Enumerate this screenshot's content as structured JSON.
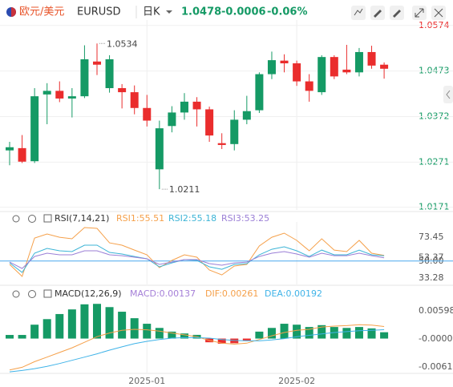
{
  "header": {
    "pair": "欧元/美元",
    "symbol": "EURUSD",
    "period": "日K",
    "price": "1.0478",
    "change": "-0.0006",
    "change_pct": "-0.06%"
  },
  "chart_data": [
    {
      "type": "candlestick",
      "categories": [
        null,
        null,
        null,
        null,
        null,
        null,
        null,
        null,
        null,
        null,
        null,
        "2025-01",
        null,
        null,
        null,
        null,
        null,
        null,
        null,
        null,
        null,
        null,
        null,
        "2025-02",
        null,
        null,
        null,
        null,
        null,
        null,
        null
      ],
      "open": [
        1.0297,
        1.0302,
        1.0273,
        1.0421,
        1.0429,
        1.0412,
        1.0417,
        1.0494,
        1.0435,
        1.0435,
        1.0426,
        1.0391,
        1.0255,
        1.0351,
        1.0381,
        1.0405,
        1.0388,
        1.0313,
        1.0311,
        1.0365,
        1.0386,
        1.0466,
        1.0496,
        1.049,
        1.045,
        1.0426,
        1.0504,
        1.0476,
        1.047,
        1.0515,
        1.0487
      ],
      "high": [
        1.0316,
        1.0331,
        1.0435,
        1.0446,
        1.045,
        1.0435,
        1.053,
        1.0534,
        1.0508,
        1.0444,
        1.0441,
        1.042,
        1.0363,
        1.0395,
        1.0424,
        1.0415,
        1.0394,
        1.0335,
        1.0386,
        1.0418,
        1.047,
        1.0516,
        1.051,
        1.0496,
        1.0466,
        1.0508,
        1.0508,
        1.0531,
        1.0524,
        1.0529,
        1.0492
      ],
      "low": [
        1.0264,
        1.0269,
        1.0269,
        1.0355,
        1.0404,
        1.037,
        1.0413,
        1.0464,
        1.0425,
        1.039,
        1.0377,
        1.035,
        1.0211,
        1.0337,
        1.0365,
        1.035,
        1.0316,
        1.03,
        1.0297,
        1.0355,
        1.038,
        1.0455,
        1.047,
        1.044,
        1.0405,
        1.042,
        1.0455,
        1.0466,
        1.0461,
        1.0478,
        1.0456
      ],
      "close": [
        1.0304,
        1.0272,
        1.0417,
        1.0429,
        1.0412,
        1.0417,
        1.0499,
        1.0487,
        1.0499,
        1.0426,
        1.0391,
        1.0363,
        1.0346,
        1.0381,
        1.0405,
        1.0388,
        1.033,
        1.0309,
        1.0365,
        1.0384,
        1.0466,
        1.0497,
        1.049,
        1.045,
        1.0429,
        1.0504,
        1.0461,
        1.047,
        1.0515,
        1.0485,
        1.0478
      ],
      "up_color": "#159a65",
      "down_color": "#ea2d2d",
      "annotations": [
        {
          "label": "1.0534",
          "value": 1.0534
        },
        {
          "label": "1.0211",
          "value": 1.0211
        }
      ],
      "ylim": [
        1.0165,
        1.0586
      ],
      "yticks": [
        1.0574,
        1.0473,
        1.0372,
        1.0271,
        1.0171
      ],
      "ytick_colors": [
        "#ea2d2d",
        "#159a65",
        "#159a65",
        "#159a65",
        "#159a65"
      ],
      "grid": true
    },
    {
      "type": "line",
      "title": "RSI(7,14,21)",
      "series": [
        {
          "name": "RSI1:55.51",
          "color": "#f5a04a",
          "values": [
            46.7,
            34.9,
            72.6,
            76.6,
            73.4,
            71.9,
            82.9,
            82.1,
            67.9,
            65.6,
            60.8,
            56.1,
            43.5,
            50.6,
            56.1,
            53.8,
            41.2,
            36.4,
            45.1,
            46.7,
            64.8,
            73.4,
            77.4,
            70.3,
            60.1,
            71.9,
            60.8,
            59.3,
            70.3,
            57.7,
            55.51
          ]
        },
        {
          "name": "RSI2:55.18",
          "color": "#3cb4d6",
          "values": [
            48.2,
            38.8,
            57.7,
            62.4,
            60.1,
            59.3,
            65.6,
            65.6,
            58.5,
            56.9,
            54.5,
            52.2,
            44.3,
            48.2,
            51.4,
            50.6,
            44.3,
            41.9,
            46.7,
            47.5,
            56.1,
            61.6,
            64.0,
            60.1,
            54.5,
            60.8,
            56.1,
            56.1,
            60.8,
            56.1,
            55.18
          ]
        },
        {
          "name": "RSI3:53.25",
          "color": "#9b7fd6",
          "values": [
            49.0,
            42.7,
            54.5,
            57.7,
            56.1,
            56.1,
            60.1,
            60.1,
            56.1,
            55.3,
            53.8,
            52.2,
            46.7,
            49.0,
            51.4,
            51.4,
            47.5,
            45.9,
            48.2,
            49.0,
            54.5,
            57.7,
            59.3,
            56.9,
            53.8,
            57.7,
            55.3,
            55.3,
            57.7,
            55.3,
            53.25
          ]
        }
      ],
      "ylim": [
        27,
        96.3
      ],
      "yticks": [
        73.45,
        53.37,
        {
          "value": 50,
          "label": "50.00"
        },
        33.28
      ],
      "grid_colors": [
        null,
        null,
        "#4aa8ee",
        null
      ]
    },
    {
      "type": "macd",
      "title": "MACD(12,26,9)",
      "series": [
        {
          "name": "MACD:0.00137",
          "color": "#a57fd8",
          "kind": "bar",
          "values": [
            0.00078,
            0.00078,
            0.003,
            0.0042,
            0.0053,
            0.0063,
            0.0074,
            0.0075,
            0.0068,
            0.0058,
            0.0044,
            0.0032,
            0.0023,
            0.0015,
            0.0011,
            0.0008,
            -0.0008,
            -0.0011,
            -0.001,
            -0.0004,
            0.0015,
            0.0023,
            0.0032,
            0.003,
            0.0025,
            0.0029,
            0.0025,
            0.0023,
            0.0025,
            0.0022,
            0.00137
          ]
        },
        {
          "name": "DIF:0.00261",
          "color": "#f5a04a",
          "kind": "line",
          "values": [
            -0.0068,
            -0.0062,
            -0.005,
            -0.004,
            -0.003,
            -0.002,
            -0.0008,
            0.0004,
            0.0012,
            0.0018,
            0.002,
            0.0019,
            0.0016,
            0.0012,
            0.0008,
            0.0004,
            -0.0004,
            -0.001,
            -0.0012,
            -0.001,
            -0.0002,
            0.0006,
            0.0013,
            0.0018,
            0.002,
            0.0025,
            0.0027,
            0.0028,
            0.003,
            0.0029,
            0.00261
          ]
        },
        {
          "name": "DEA:0.00192",
          "color": "#3fb3e8",
          "kind": "line",
          "values": [
            -0.0072,
            -0.0069,
            -0.0065,
            -0.006,
            -0.0054,
            -0.0047,
            -0.004,
            -0.0033,
            -0.0025,
            -0.0018,
            -0.0011,
            -0.0006,
            -0.0002,
            0.0001,
            0.0002,
            0.0002,
            0.0001,
            -0.0002,
            -0.0004,
            -0.0005,
            -0.0005,
            -0.0003,
            0.0,
            0.0004,
            0.0007,
            0.001,
            0.0013,
            0.0015,
            0.0017,
            0.0018,
            0.00192
          ]
        }
      ],
      "up_color": "#159a65",
      "down_color": "#ea2d2d",
      "ylim": [
        -0.00735,
        0.01135
      ],
      "yticks": [
        0.00598,
        -8e-05,
        -0.00614
      ]
    }
  ]
}
